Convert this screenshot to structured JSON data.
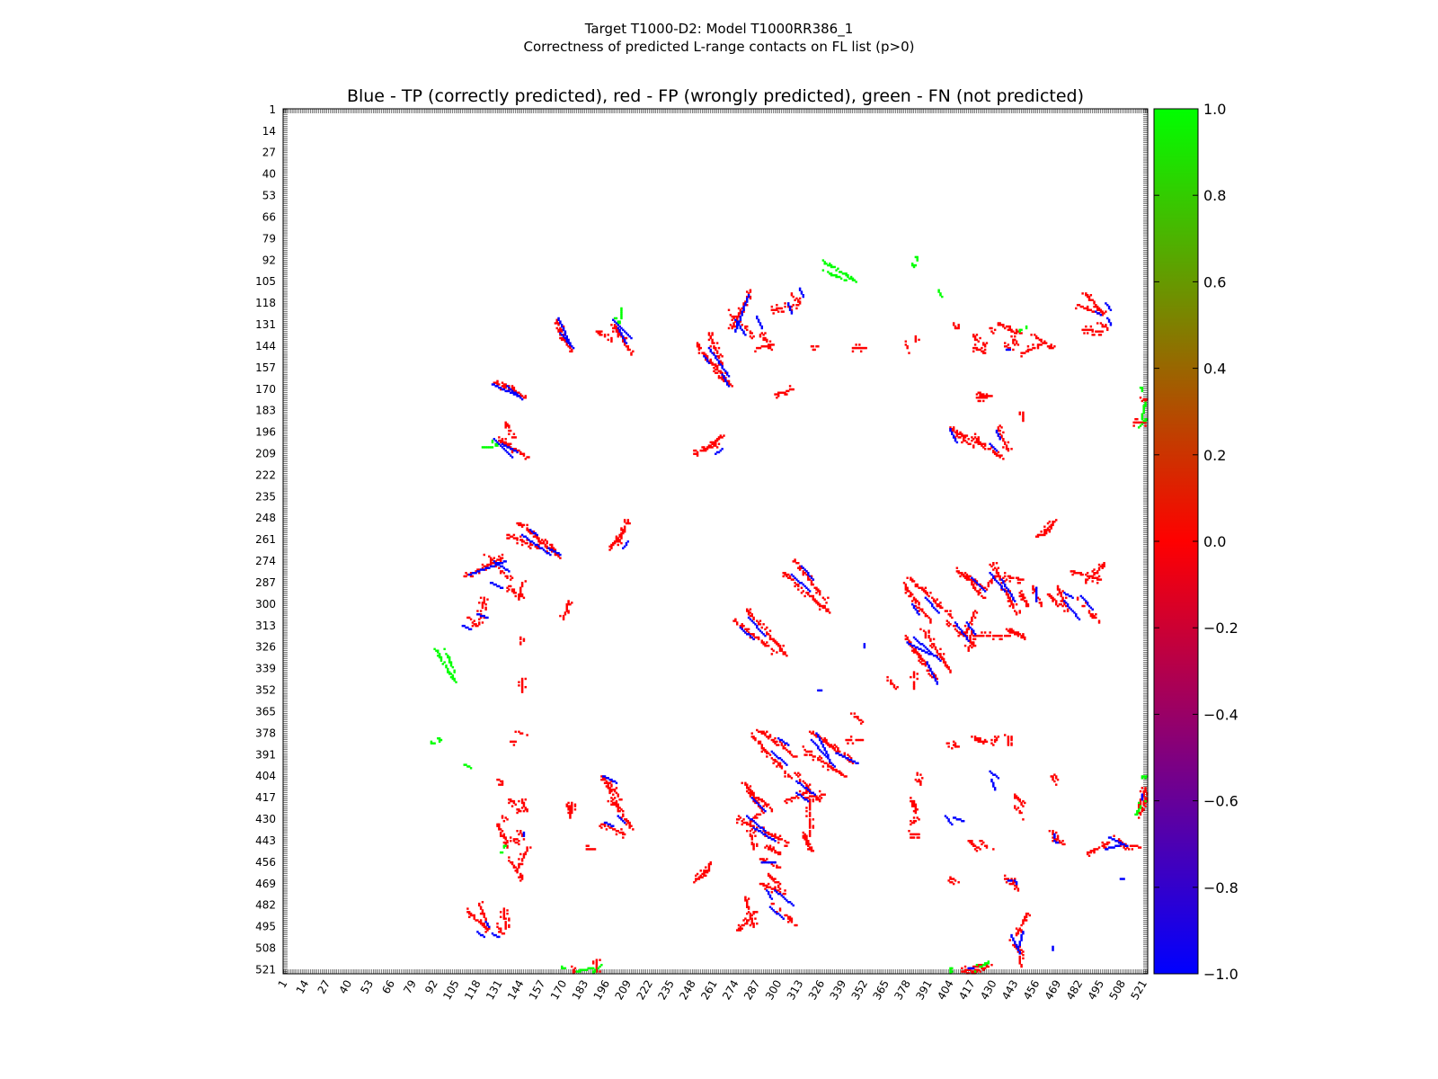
{
  "figure": {
    "title_line1": "Target T1000-D2: Model T1000RR386_1",
    "title_line2": "Correctness of predicted L-range contacts on FL list (p>0)"
  },
  "chart_data": {
    "type": "heatmap",
    "title": "Blue - TP (correctly predicted), red - FP (wrongly predicted), green - FN (not predicted)",
    "xlabel": "",
    "ylabel": "",
    "x_range": [
      1,
      523
    ],
    "y_range": [
      1,
      523
    ],
    "y_inverted": true,
    "tick_labels": [
      1,
      14,
      27,
      40,
      53,
      66,
      79,
      92,
      105,
      118,
      131,
      144,
      157,
      170,
      183,
      196,
      209,
      222,
      235,
      248,
      261,
      274,
      287,
      300,
      313,
      326,
      339,
      352,
      365,
      378,
      391,
      404,
      417,
      430,
      443,
      456,
      469,
      482,
      495,
      508,
      521
    ],
    "colorbar": {
      "min": -1.0,
      "max": 1.0,
      "ticks": [
        "1.0",
        "0.8",
        "0.6",
        "0.4",
        "0.2",
        "0.0",
        "−0.2",
        "−0.4",
        "−0.6",
        "−0.8",
        "−1.0"
      ],
      "colors": {
        "low": "#0000ff",
        "mid": "#ff0000",
        "high": "#00ff00"
      }
    },
    "legend": {
      "tp": "Blue",
      "fp": "red",
      "fn": "green"
    },
    "segments": [
      {
        "cls": "tp",
        "x1": 127,
        "y1": 167,
        "x2": 143,
        "y2": 174
      },
      {
        "cls": "fp",
        "x1": 128,
        "y1": 166,
        "x2": 142,
        "y2": 172
      },
      {
        "cls": "tp",
        "x1": 168,
        "y1": 136,
        "x2": 176,
        "y2": 145
      },
      {
        "cls": "fp",
        "x1": 166,
        "y1": 133,
        "x2": 175,
        "y2": 148
      },
      {
        "cls": "tp",
        "x1": 203,
        "y1": 133,
        "x2": 208,
        "y2": 142
      },
      {
        "cls": "fp",
        "x1": 200,
        "y1": 133,
        "x2": 206,
        "y2": 139
      },
      {
        "cls": "fn",
        "x1": 201,
        "y1": 127,
        "x2": 204,
        "y2": 131
      },
      {
        "cls": "tp",
        "x1": 128,
        "y1": 200,
        "x2": 139,
        "y2": 211
      },
      {
        "cls": "fp",
        "x1": 131,
        "y1": 201,
        "x2": 148,
        "y2": 211
      },
      {
        "cls": "fn",
        "x1": 121,
        "y1": 205,
        "x2": 127,
        "y2": 205
      },
      {
        "cls": "fp",
        "x1": 134,
        "y1": 190,
        "x2": 140,
        "y2": 199
      },
      {
        "cls": "fp",
        "x1": 249,
        "y1": 209,
        "x2": 263,
        "y2": 203
      },
      {
        "cls": "tp",
        "x1": 262,
        "y1": 209,
        "x2": 266,
        "y2": 206
      },
      {
        "cls": "fp",
        "x1": 250,
        "y1": 143,
        "x2": 262,
        "y2": 158
      },
      {
        "cls": "tp",
        "x1": 255,
        "y1": 150,
        "x2": 258,
        "y2": 154
      },
      {
        "cls": "fp",
        "x1": 263,
        "y1": 162,
        "x2": 272,
        "y2": 168
      },
      {
        "cls": "tp",
        "x1": 266,
        "y1": 161,
        "x2": 270,
        "y2": 168
      },
      {
        "cls": "tp",
        "x1": 274,
        "y1": 128,
        "x2": 280,
        "y2": 137
      },
      {
        "cls": "fp",
        "x1": 270,
        "y1": 124,
        "x2": 285,
        "y2": 138
      },
      {
        "cls": "fp",
        "x1": 286,
        "y1": 145,
        "x2": 296,
        "y2": 143
      },
      {
        "cls": "fp",
        "x1": 296,
        "y1": 122,
        "x2": 311,
        "y2": 119
      },
      {
        "cls": "tp",
        "x1": 306,
        "y1": 118,
        "x2": 308,
        "y2": 124
      },
      {
        "cls": "fn",
        "x1": 326,
        "y1": 98,
        "x2": 340,
        "y2": 104
      },
      {
        "cls": "fp",
        "x1": 298,
        "y1": 173,
        "x2": 308,
        "y2": 170
      },
      {
        "cls": "fp",
        "x1": 320,
        "y1": 144,
        "x2": 325,
        "y2": 144
      },
      {
        "cls": "fp",
        "x1": 345,
        "y1": 145,
        "x2": 352,
        "y2": 145
      },
      {
        "cls": "fp",
        "x1": 377,
        "y1": 143,
        "x2": 379,
        "y2": 146
      },
      {
        "cls": "fp",
        "x1": 136,
        "y1": 258,
        "x2": 155,
        "y2": 266
      },
      {
        "cls": "tp",
        "x1": 145,
        "y1": 258,
        "x2": 162,
        "y2": 270
      },
      {
        "cls": "fp",
        "x1": 155,
        "y1": 262,
        "x2": 166,
        "y2": 270
      },
      {
        "cls": "tp",
        "x1": 113,
        "y1": 282,
        "x2": 135,
        "y2": 274
      },
      {
        "cls": "fp",
        "x1": 110,
        "y1": 283,
        "x2": 133,
        "y2": 272
      },
      {
        "cls": "tp",
        "x1": 126,
        "y1": 287,
        "x2": 133,
        "y2": 290
      },
      {
        "cls": "fp",
        "x1": 136,
        "y1": 290,
        "x2": 145,
        "y2": 296
      },
      {
        "cls": "fp",
        "x1": 198,
        "y1": 265,
        "x2": 206,
        "y2": 256
      },
      {
        "cls": "tp",
        "x1": 109,
        "y1": 313,
        "x2": 114,
        "y2": 315
      },
      {
        "cls": "fp",
        "x1": 112,
        "y1": 308,
        "x2": 118,
        "y2": 314
      },
      {
        "cls": "fn",
        "x1": 92,
        "y1": 327,
        "x2": 104,
        "y2": 347
      },
      {
        "cls": "tp",
        "x1": 308,
        "y1": 282,
        "x2": 319,
        "y2": 292
      },
      {
        "cls": "fp",
        "x1": 303,
        "y1": 281,
        "x2": 330,
        "y2": 305
      },
      {
        "cls": "tp",
        "x1": 277,
        "y1": 314,
        "x2": 285,
        "y2": 321
      },
      {
        "cls": "fp",
        "x1": 273,
        "y1": 310,
        "x2": 299,
        "y2": 330
      },
      {
        "cls": "fp",
        "x1": 376,
        "y1": 289,
        "x2": 392,
        "y2": 311
      },
      {
        "cls": "tp",
        "x1": 381,
        "y1": 300,
        "x2": 385,
        "y2": 306
      },
      {
        "cls": "fp",
        "x1": 408,
        "y1": 280,
        "x2": 425,
        "y2": 291
      },
      {
        "cls": "fp",
        "x1": 426,
        "y1": 288,
        "x2": 432,
        "y2": 282
      },
      {
        "cls": "tp",
        "x1": 428,
        "y1": 281,
        "x2": 437,
        "y2": 292
      },
      {
        "cls": "fp",
        "x1": 437,
        "y1": 283,
        "x2": 447,
        "y2": 285
      },
      {
        "cls": "fp",
        "x1": 446,
        "y1": 293,
        "x2": 450,
        "y2": 301
      },
      {
        "cls": "fp",
        "x1": 462,
        "y1": 293,
        "x2": 470,
        "y2": 302
      },
      {
        "cls": "tp",
        "x1": 473,
        "y1": 298,
        "x2": 482,
        "y2": 309
      },
      {
        "cls": "fp",
        "x1": 477,
        "y1": 280,
        "x2": 494,
        "y2": 285
      },
      {
        "cls": "tp",
        "x1": 407,
        "y1": 311,
        "x2": 415,
        "y2": 322
      },
      {
        "cls": "fp",
        "x1": 402,
        "y1": 310,
        "x2": 418,
        "y2": 325
      },
      {
        "cls": "fp",
        "x1": 418,
        "y1": 319,
        "x2": 440,
        "y2": 319
      },
      {
        "cls": "tp",
        "x1": 378,
        "y1": 323,
        "x2": 392,
        "y2": 330
      },
      {
        "cls": "fp",
        "x1": 377,
        "y1": 321,
        "x2": 395,
        "y2": 345
      },
      {
        "cls": "tp",
        "x1": 390,
        "y1": 335,
        "x2": 396,
        "y2": 348
      },
      {
        "cls": "fp",
        "x1": 366,
        "y1": 346,
        "x2": 372,
        "y2": 352
      },
      {
        "cls": "tp",
        "x1": 324,
        "y1": 352,
        "x2": 326,
        "y2": 352
      },
      {
        "cls": "fp",
        "x1": 284,
        "y1": 380,
        "x2": 307,
        "y2": 405
      },
      {
        "cls": "tp",
        "x1": 296,
        "y1": 389,
        "x2": 305,
        "y2": 397
      },
      {
        "cls": "fp",
        "x1": 315,
        "y1": 388,
        "x2": 340,
        "y2": 404
      },
      {
        "cls": "tp",
        "x1": 320,
        "y1": 382,
        "x2": 334,
        "y2": 398
      },
      {
        "cls": "fp",
        "x1": 340,
        "y1": 382,
        "x2": 350,
        "y2": 382
      },
      {
        "cls": "fp",
        "x1": 281,
        "y1": 411,
        "x2": 296,
        "y2": 425
      },
      {
        "cls": "tp",
        "x1": 284,
        "y1": 417,
        "x2": 292,
        "y2": 425
      },
      {
        "cls": "fp",
        "x1": 303,
        "y1": 419,
        "x2": 318,
        "y2": 413
      },
      {
        "cls": "tp",
        "x1": 311,
        "y1": 414,
        "x2": 318,
        "y2": 419
      },
      {
        "cls": "fp",
        "x1": 316,
        "y1": 417,
        "x2": 327,
        "y2": 415
      },
      {
        "cls": "tp",
        "x1": 285,
        "y1": 435,
        "x2": 298,
        "y2": 443
      },
      {
        "cls": "fp",
        "x1": 275,
        "y1": 430,
        "x2": 305,
        "y2": 444
      },
      {
        "cls": "fp",
        "x1": 314,
        "y1": 438,
        "x2": 320,
        "y2": 449
      },
      {
        "cls": "fp",
        "x1": 289,
        "y1": 454,
        "x2": 300,
        "y2": 459
      },
      {
        "cls": "tp",
        "x1": 290,
        "y1": 456,
        "x2": 298,
        "y2": 456
      },
      {
        "cls": "fp",
        "x1": 289,
        "y1": 469,
        "x2": 304,
        "y2": 475
      },
      {
        "cls": "tp",
        "x1": 293,
        "y1": 473,
        "x2": 296,
        "y2": 478
      },
      {
        "cls": "tp",
        "x1": 295,
        "y1": 483,
        "x2": 303,
        "y2": 490
      },
      {
        "cls": "fp",
        "x1": 296,
        "y1": 481,
        "x2": 310,
        "y2": 494
      },
      {
        "cls": "fp",
        "x1": 275,
        "y1": 497,
        "x2": 286,
        "y2": 486
      },
      {
        "cls": "fp",
        "x1": 248,
        "y1": 468,
        "x2": 258,
        "y2": 460
      },
      {
        "cls": "fp",
        "x1": 191,
        "y1": 432,
        "x2": 207,
        "y2": 439
      },
      {
        "cls": "tp",
        "x1": 195,
        "y1": 432,
        "x2": 200,
        "y2": 434
      },
      {
        "cls": "fp",
        "x1": 193,
        "y1": 404,
        "x2": 203,
        "y2": 424
      },
      {
        "cls": "tp",
        "x1": 194,
        "y1": 404,
        "x2": 199,
        "y2": 406
      },
      {
        "cls": "fp",
        "x1": 137,
        "y1": 418,
        "x2": 143,
        "y2": 425
      },
      {
        "cls": "fp",
        "x1": 130,
        "y1": 433,
        "x2": 136,
        "y2": 446
      },
      {
        "cls": "fp",
        "x1": 138,
        "y1": 443,
        "x2": 144,
        "y2": 445
      },
      {
        "cls": "fp",
        "x1": 137,
        "y1": 455,
        "x2": 145,
        "y2": 466
      },
      {
        "cls": "fn",
        "x1": 131,
        "y1": 449,
        "x2": 133,
        "y2": 450
      },
      {
        "cls": "fp",
        "x1": 111,
        "y1": 485,
        "x2": 124,
        "y2": 497
      },
      {
        "cls": "tp",
        "x1": 118,
        "y1": 498,
        "x2": 122,
        "y2": 501
      },
      {
        "cls": "tp",
        "x1": 127,
        "y1": 499,
        "x2": 131,
        "y2": 501
      },
      {
        "cls": "fp",
        "x1": 130,
        "y1": 495,
        "x2": 133,
        "y2": 499
      },
      {
        "cls": "fp",
        "x1": 138,
        "y1": 383,
        "x2": 142,
        "y2": 383
      },
      {
        "cls": "fp",
        "x1": 130,
        "y1": 406,
        "x2": 133,
        "y2": 408
      },
      {
        "cls": "fn",
        "x1": 110,
        "y1": 397,
        "x2": 113,
        "y2": 399
      },
      {
        "cls": "fn",
        "x1": 94,
        "y1": 381,
        "x2": 95,
        "y2": 383
      },
      {
        "cls": "fp",
        "x1": 172,
        "y1": 420,
        "x2": 174,
        "y2": 426
      },
      {
        "cls": "fp",
        "x1": 184,
        "y1": 448,
        "x2": 188,
        "y2": 448
      },
      {
        "cls": "fn",
        "x1": 177,
        "y1": 522,
        "x2": 187,
        "y2": 520
      },
      {
        "cls": "fp",
        "x1": 175,
        "y1": 519,
        "x2": 177,
        "y2": 522
      },
      {
        "cls": "fp",
        "x1": 405,
        "y1": 196,
        "x2": 418,
        "y2": 205
      },
      {
        "cls": "tp",
        "x1": 406,
        "y1": 199,
        "x2": 408,
        "y2": 202
      },
      {
        "cls": "fp",
        "x1": 419,
        "y1": 199,
        "x2": 435,
        "y2": 212
      },
      {
        "cls": "tp",
        "x1": 428,
        "y1": 203,
        "x2": 432,
        "y2": 207
      },
      {
        "cls": "fp",
        "x1": 420,
        "y1": 175,
        "x2": 428,
        "y2": 174
      },
      {
        "cls": "fp",
        "x1": 418,
        "y1": 145,
        "x2": 425,
        "y2": 148
      },
      {
        "cls": "fp",
        "x1": 436,
        "y1": 144,
        "x2": 442,
        "y2": 146
      },
      {
        "cls": "tp",
        "x1": 438,
        "y1": 146,
        "x2": 440,
        "y2": 146
      },
      {
        "cls": "fp",
        "x1": 447,
        "y1": 148,
        "x2": 458,
        "y2": 143
      },
      {
        "cls": "fp",
        "x1": 406,
        "y1": 132,
        "x2": 409,
        "y2": 134
      },
      {
        "cls": "fp",
        "x1": 428,
        "y1": 133,
        "x2": 431,
        "y2": 134
      },
      {
        "cls": "fn",
        "x1": 444,
        "y1": 135,
        "x2": 446,
        "y2": 134
      },
      {
        "cls": "fp",
        "x1": 480,
        "y1": 119,
        "x2": 495,
        "y2": 125
      },
      {
        "cls": "tp",
        "x1": 492,
        "y1": 123,
        "x2": 495,
        "y2": 125
      },
      {
        "cls": "fp",
        "x1": 484,
        "y1": 134,
        "x2": 495,
        "y2": 135
      },
      {
        "cls": "fp",
        "x1": 456,
        "y1": 259,
        "x2": 463,
        "y2": 253
      },
      {
        "cls": "fp",
        "x1": 402,
        "y1": 384,
        "x2": 408,
        "y2": 386
      },
      {
        "cls": "fp",
        "x1": 429,
        "y1": 384,
        "x2": 432,
        "y2": 380
      },
      {
        "cls": "tp",
        "x1": 428,
        "y1": 401,
        "x2": 433,
        "y2": 405
      },
      {
        "cls": "tp",
        "x1": 406,
        "y1": 429,
        "x2": 412,
        "y2": 431
      },
      {
        "cls": "fp",
        "x1": 415,
        "y1": 443,
        "x2": 421,
        "y2": 448
      },
      {
        "cls": "fp",
        "x1": 441,
        "y1": 421,
        "x2": 448,
        "y2": 428
      },
      {
        "cls": "fp",
        "x1": 437,
        "y1": 466,
        "x2": 443,
        "y2": 468
      },
      {
        "cls": "tp",
        "x1": 439,
        "y1": 467,
        "x2": 441,
        "y2": 467
      },
      {
        "cls": "fp",
        "x1": 466,
        "y1": 441,
        "x2": 472,
        "y2": 445
      },
      {
        "cls": "tp",
        "x1": 467,
        "y1": 443,
        "x2": 469,
        "y2": 444
      },
      {
        "cls": "fp",
        "x1": 486,
        "y1": 451,
        "x2": 499,
        "y2": 444
      },
      {
        "cls": "tp",
        "x1": 498,
        "y1": 448,
        "x2": 508,
        "y2": 445
      },
      {
        "cls": "fp",
        "x1": 505,
        "y1": 444,
        "x2": 519,
        "y2": 447
      },
      {
        "cls": "tp",
        "x1": 441,
        "y1": 500,
        "x2": 446,
        "y2": 511
      },
      {
        "cls": "fp",
        "x1": 440,
        "y1": 505,
        "x2": 448,
        "y2": 510
      },
      {
        "cls": "fp",
        "x1": 411,
        "y1": 522,
        "x2": 422,
        "y2": 518
      },
      {
        "cls": "tp",
        "x1": 415,
        "y1": 520,
        "x2": 418,
        "y2": 520
      },
      {
        "cls": "fn",
        "x1": 420,
        "y1": 518,
        "x2": 422,
        "y2": 518
      },
      {
        "cls": "fp",
        "x1": 378,
        "y1": 439,
        "x2": 385,
        "y2": 439
      },
      {
        "cls": "fp",
        "x1": 380,
        "y1": 417,
        "x2": 383,
        "y2": 425
      },
      {
        "cls": "fp",
        "x1": 403,
        "y1": 465,
        "x2": 408,
        "y2": 468
      },
      {
        "cls": "fn",
        "x1": 383,
        "y1": 90,
        "x2": 384,
        "y2": 92
      },
      {
        "cls": "fn",
        "x1": 404,
        "y1": 523,
        "x2": 404,
        "y2": 520
      },
      {
        "cls": "fn",
        "x1": 516,
        "y1": 427,
        "x2": 522,
        "y2": 418
      },
      {
        "cls": "fp",
        "x1": 518,
        "y1": 428,
        "x2": 523,
        "y2": 416
      },
      {
        "cls": "fn",
        "x1": 518,
        "y1": 193,
        "x2": 522,
        "y2": 188
      },
      {
        "cls": "fp",
        "x1": 514,
        "y1": 190,
        "x2": 522,
        "y2": 190
      },
      {
        "cls": "fn",
        "x1": 519,
        "y1": 168,
        "x2": 520,
        "y2": 171
      },
      {
        "cls": "tp",
        "x1": 507,
        "y1": 466,
        "x2": 509,
        "y2": 466
      }
    ]
  }
}
